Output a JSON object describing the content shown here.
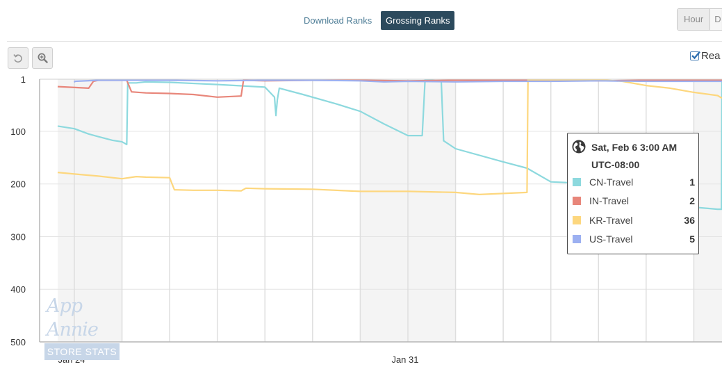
{
  "tabs": {
    "download": "Download Ranks",
    "grossing": "Grossing Ranks",
    "active": "grossing"
  },
  "period": {
    "hour": "Hour",
    "next": "D"
  },
  "tools": {
    "reset_icon": "reset-icon",
    "zoom_icon": "zoom-in-icon"
  },
  "realtime": {
    "label": "Rea",
    "checked": true
  },
  "tooltip": {
    "icon": "globe-icon",
    "line1": "Sat, Feb 6 3:00 AM",
    "line2": "UTC-08:00",
    "rows": [
      {
        "name": "CN-Travel",
        "value": "1",
        "color": "#8dd9de"
      },
      {
        "name": "IN-Travel",
        "value": "2",
        "color": "#e8867a"
      },
      {
        "name": "KR-Travel",
        "value": "36",
        "color": "#fdd77e"
      },
      {
        "name": "US-Travel",
        "value": "5",
        "color": "#9cb0f1"
      }
    ]
  },
  "watermark": {
    "top": "App Annie",
    "bottom": "STORE STATS"
  },
  "chart_data": {
    "type": "line",
    "y_axis": {
      "reversed": true,
      "ylim": [
        1,
        500
      ],
      "ticks": [
        1,
        100,
        200,
        300,
        400,
        500
      ],
      "tick_labels": [
        "1",
        "100",
        "200",
        "300",
        "400",
        "500"
      ]
    },
    "x_axis": {
      "xlim": [
        -0.35,
        13.95
      ],
      "tick_labels": [
        {
          "x": 0,
          "label": "Jan 24"
        },
        {
          "x": 7,
          "label": "Jan 31"
        }
      ]
    },
    "weekend_shading": [
      [
        -0.35,
        1.0
      ],
      [
        6.0,
        8.0
      ],
      [
        13.0,
        13.95
      ]
    ],
    "grid": true,
    "cursor_x": 13.65,
    "series": [
      {
        "name": "CN-Travel",
        "color": "#8dd9de",
        "x": [
          -0.35,
          0.0,
          0.3,
          0.5,
          0.8,
          1.0,
          1.1,
          1.12,
          1.3,
          1.5,
          2.0,
          3.0,
          4.0,
          4.2,
          4.23,
          4.26,
          4.3,
          4.8,
          5.5,
          6.0,
          6.5,
          7.0,
          7.3,
          7.36,
          7.4,
          7.5,
          7.7,
          7.75,
          8.0,
          9.0,
          9.5,
          10.0,
          10.5,
          11.0,
          11.5,
          12.0,
          12.5,
          13.0,
          13.5,
          13.58,
          13.6,
          13.95
        ],
        "y": [
          90,
          95,
          105,
          110,
          117,
          120,
          125,
          8,
          8,
          6,
          7,
          11,
          16,
          35,
          70,
          40,
          18,
          30,
          48,
          62,
          86,
          108,
          108,
          2,
          2,
          3,
          5,
          118,
          133,
          158,
          170,
          196,
          198,
          236,
          245,
          248,
          246,
          244,
          248,
          248,
          2,
          2
        ]
      },
      {
        "name": "IN-Travel",
        "color": "#e8867a",
        "x": [
          -0.35,
          0.3,
          0.4,
          0.5,
          1.0,
          1.1,
          1.2,
          1.5,
          2.0,
          2.5,
          3.0,
          3.5,
          3.55,
          4.0,
          5.0,
          6.0,
          7.0,
          8.0,
          9.0,
          10.0,
          11.0,
          12.0,
          13.0,
          13.95
        ],
        "y": [
          15,
          18,
          5,
          3,
          3,
          3,
          25,
          27,
          28,
          30,
          35,
          33,
          3,
          4,
          3,
          3,
          4,
          3,
          3,
          3,
          4,
          3,
          3,
          3
        ]
      },
      {
        "name": "KR-Travel",
        "color": "#fdd77e",
        "x": [
          -0.35,
          0.0,
          0.5,
          1.0,
          1.3,
          1.5,
          2.0,
          2.1,
          2.5,
          3.0,
          3.5,
          3.6,
          4.0,
          5.0,
          6.0,
          7.0,
          8.0,
          8.5,
          9.0,
          9.5,
          9.52,
          9.6,
          10.0,
          11.0,
          11.5,
          12.0,
          12.5,
          13.0,
          13.5,
          13.95
        ],
        "y": [
          178,
          181,
          185,
          190,
          186,
          187,
          188,
          211,
          212,
          212,
          213,
          208,
          209,
          210,
          214,
          214,
          216,
          220,
          218,
          216,
          2,
          2,
          2,
          2,
          5,
          13,
          18,
          26,
          32,
          37
        ]
      },
      {
        "name": "US-Travel",
        "color": "#9cb0f1",
        "x": [
          0.0,
          0.01,
          0.5,
          1.0,
          2.0,
          3.0,
          4.0,
          5.0,
          6.0,
          6.5,
          7.0,
          8.0,
          9.0,
          10.0,
          11.0,
          12.0,
          13.0,
          13.95
        ],
        "y": [
          7,
          5,
          3,
          3,
          3,
          4,
          3,
          3,
          4,
          6,
          5,
          6,
          5,
          5,
          4,
          5,
          5,
          5
        ]
      }
    ]
  }
}
